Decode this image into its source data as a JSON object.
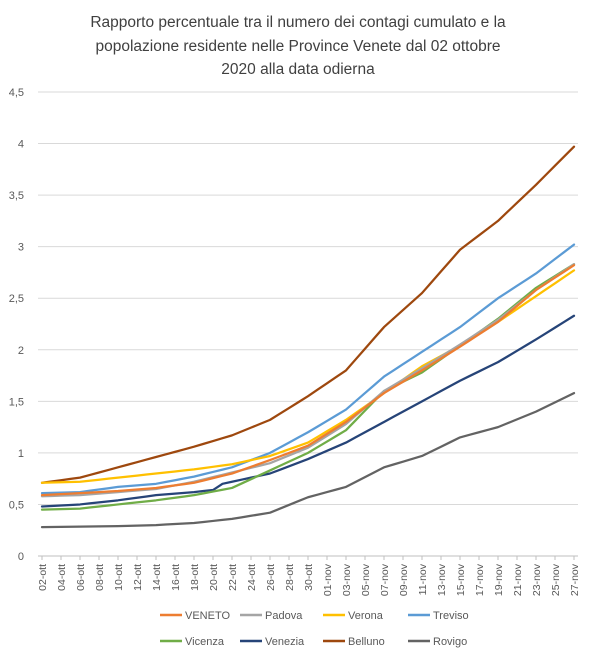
{
  "chart_data": {
    "type": "line",
    "title_lines": [
      "Rapporto percentuale tra il numero dei contagi cumulato e la",
      "popolazione residente nelle Province Venete dal 02 ottobre",
      "2020 alla data odierna"
    ],
    "xlabel": "",
    "ylabel": "",
    "ylim": [
      0,
      4.5
    ],
    "yticks": [
      "0",
      "0,5",
      "1",
      "1,5",
      "2",
      "2,5",
      "3",
      "3,5",
      "4",
      "4,5"
    ],
    "ytick_values": [
      0,
      0.5,
      1,
      1.5,
      2,
      2.5,
      3,
      3.5,
      4,
      4.5
    ],
    "x_labels": [
      "02-ott",
      "04-ott",
      "06-ott",
      "08-ott",
      "10-ott",
      "12-ott",
      "14-ott",
      "16-ott",
      "18-ott",
      "20-ott",
      "22-ott",
      "24-ott",
      "26-ott",
      "28-ott",
      "30-ott",
      "01-nov",
      "03-nov",
      "05-nov",
      "07-nov",
      "09-nov",
      "11-nov",
      "13-nov",
      "15-nov",
      "17-nov",
      "19-nov",
      "21-nov",
      "23-nov",
      "25-nov",
      "27-nov"
    ],
    "x_label_positions": [
      0,
      2,
      4,
      6,
      8,
      10,
      12,
      14,
      16,
      18,
      20,
      22,
      24,
      26,
      28,
      30,
      32,
      34,
      36,
      38,
      40,
      42,
      44,
      46,
      48,
      50,
      52,
      54,
      56
    ],
    "n_days": 57,
    "grid": true,
    "legend_position": "bottom",
    "series": [
      {
        "name": "VENETO",
        "color": "#ED7D31",
        "key": [
          0,
          0.59,
          4,
          0.61,
          8,
          0.63,
          12,
          0.66,
          16,
          0.71,
          20,
          0.8,
          24,
          0.93,
          28,
          1.07,
          32,
          1.3,
          36,
          1.58,
          40,
          1.8,
          44,
          2.03,
          48,
          2.27,
          52,
          2.58,
          56,
          2.82
        ]
      },
      {
        "name": "Padova",
        "color": "#A5A5A5",
        "key": [
          0,
          0.58,
          4,
          0.59,
          8,
          0.62,
          12,
          0.65,
          16,
          0.72,
          20,
          0.81,
          24,
          0.9,
          28,
          1.05,
          32,
          1.28,
          36,
          1.6,
          40,
          1.82,
          44,
          2.05,
          48,
          2.29,
          52,
          2.58,
          56,
          2.83
        ]
      },
      {
        "name": "Verona",
        "color": "#FFC000",
        "key": [
          0,
          0.71,
          4,
          0.72,
          8,
          0.76,
          12,
          0.8,
          16,
          0.84,
          20,
          0.89,
          24,
          0.97,
          28,
          1.1,
          32,
          1.32,
          36,
          1.58,
          40,
          1.84,
          44,
          2.04,
          48,
          2.27,
          52,
          2.52,
          56,
          2.77
        ]
      },
      {
        "name": "Treviso",
        "color": "#5B9BD5",
        "key": [
          0,
          0.61,
          4,
          0.62,
          8,
          0.67,
          12,
          0.7,
          16,
          0.77,
          20,
          0.86,
          24,
          1.0,
          28,
          1.2,
          32,
          1.42,
          36,
          1.74,
          40,
          1.98,
          44,
          2.22,
          48,
          2.5,
          52,
          2.74,
          55,
          2.95,
          56,
          3.02
        ]
      },
      {
        "name": "Vicenza",
        "color": "#70AD47",
        "key": [
          0,
          0.45,
          4,
          0.46,
          8,
          0.5,
          12,
          0.54,
          16,
          0.59,
          20,
          0.66,
          24,
          0.83,
          28,
          1.0,
          32,
          1.22,
          36,
          1.6,
          40,
          1.78,
          44,
          2.04,
          48,
          2.3,
          52,
          2.6,
          56,
          2.83
        ]
      },
      {
        "name": "Venezia",
        "color": "#264478",
        "key": [
          0,
          0.48,
          4,
          0.5,
          8,
          0.54,
          12,
          0.59,
          16,
          0.62,
          18,
          0.64,
          19,
          0.7,
          24,
          0.8,
          28,
          0.94,
          32,
          1.1,
          36,
          1.3,
          40,
          1.5,
          44,
          1.7,
          48,
          1.88,
          52,
          2.1,
          56,
          2.33
        ]
      },
      {
        "name": "Belluno",
        "color": "#9E480E",
        "key": [
          0,
          0.71,
          4,
          0.76,
          8,
          0.86,
          12,
          0.96,
          16,
          1.06,
          20,
          1.17,
          24,
          1.32,
          28,
          1.55,
          32,
          1.8,
          36,
          2.22,
          40,
          2.55,
          44,
          2.97,
          48,
          3.25,
          52,
          3.6,
          56,
          3.97
        ]
      },
      {
        "name": "Rovigo",
        "color": "#636363",
        "key": [
          0,
          0.28,
          8,
          0.29,
          12,
          0.3,
          16,
          0.32,
          20,
          0.36,
          24,
          0.42,
          28,
          0.57,
          32,
          0.67,
          36,
          0.86,
          40,
          0.97,
          44,
          1.15,
          48,
          1.25,
          52,
          1.4,
          56,
          1.58
        ]
      }
    ]
  }
}
